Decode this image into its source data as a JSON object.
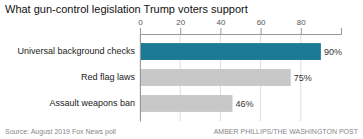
{
  "chart_data": {
    "type": "bar",
    "orientation": "horizontal",
    "title": "What gun-control legislation Trump voters support",
    "categories": [
      "Universal background checks",
      "Red flag laws",
      "Assault weapons ban"
    ],
    "values": [
      90,
      75,
      46
    ],
    "value_labels": [
      "90%",
      "75%",
      "46%"
    ],
    "data_labels": true,
    "colors": [
      "#1b7a96",
      "#c8c8c8",
      "#c8c8c8"
    ],
    "xlim": [
      0,
      100
    ],
    "xticks": [
      0,
      20,
      40,
      60,
      80
    ],
    "grid": true,
    "annotations": [
      "Source: August 2019 Fox News poll",
      "AMBER PHILLIPS/THE WASHINGTON POST"
    ]
  }
}
